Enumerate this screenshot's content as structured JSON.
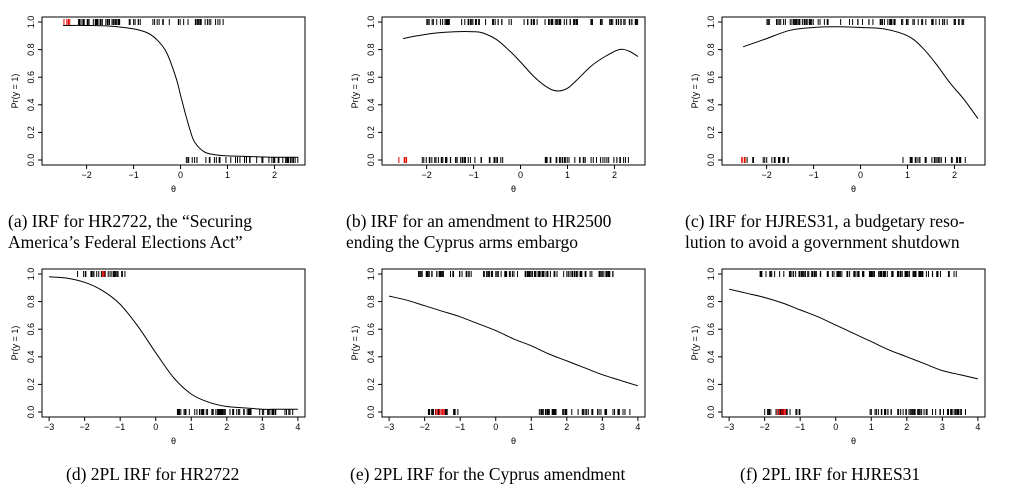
{
  "chart_data": [
    {
      "id": "a",
      "type": "line",
      "caption_lines": [
        "(a) IRF for HR2722, the “Securing",
        "America’s Federal Elections Act”"
      ],
      "xlabel": "θ",
      "ylabel": "Pr(y = 1)",
      "xlim": [
        -2.95,
        2.65
      ],
      "ylim": [
        0,
        1
      ],
      "xticks": [
        -2,
        -1,
        0,
        1,
        2
      ],
      "yticks": [
        0.0,
        0.2,
        0.4,
        0.6,
        0.8,
        1.0
      ],
      "ytick_labels": [
        "0.0",
        "0.2",
        "0.4",
        "0.6",
        "0.8",
        "1.0"
      ],
      "curve": {
        "x": [
          -2.5,
          -2.0,
          -1.5,
          -1.0,
          -0.7,
          -0.5,
          -0.3,
          -0.1,
          0.0,
          0.1,
          0.2,
          0.3,
          0.5,
          0.7,
          1.0,
          1.5,
          2.0,
          2.5
        ],
        "y": [
          0.975,
          0.975,
          0.97,
          0.95,
          0.92,
          0.87,
          0.78,
          0.6,
          0.47,
          0.34,
          0.22,
          0.13,
          0.06,
          0.04,
          0.03,
          0.025,
          0.02,
          0.02
        ]
      },
      "rug_top_black": [
        [
          -2.2,
          1.05
        ]
      ],
      "rug_top_red": [
        [
          -2.5,
          -2.3
        ]
      ],
      "rug_bottom_black": [
        [
          0.1,
          0.4
        ],
        [
          0.5,
          2.5
        ]
      ],
      "rug_bottom_red": []
    },
    {
      "id": "b",
      "type": "line",
      "caption_lines": [
        "(b) IRF for an amendment to HR2500",
        "ending the Cyprus arms embargo"
      ],
      "xlabel": "θ",
      "ylabel": "Pr(y = 1)",
      "xlim": [
        -2.95,
        2.65
      ],
      "ylim": [
        0,
        1
      ],
      "xticks": [
        -2,
        -1,
        0,
        1,
        2
      ],
      "yticks": [
        0.0,
        0.2,
        0.4,
        0.6,
        0.8,
        1.0
      ],
      "ytick_labels": [
        "0.0",
        "0.2",
        "0.4",
        "0.6",
        "0.8",
        "1.0"
      ],
      "curve": {
        "x": [
          -2.5,
          -2.2,
          -1.8,
          -1.4,
          -1.0,
          -0.8,
          -0.5,
          -0.2,
          0.0,
          0.3,
          0.6,
          0.8,
          1.0,
          1.2,
          1.5,
          1.8,
          2.1,
          2.3,
          2.5
        ],
        "y": [
          0.88,
          0.9,
          0.92,
          0.93,
          0.93,
          0.92,
          0.87,
          0.78,
          0.71,
          0.6,
          0.52,
          0.5,
          0.52,
          0.58,
          0.68,
          0.75,
          0.8,
          0.79,
          0.75
        ]
      },
      "rug_top_black": [
        [
          -2.0,
          2.5
        ]
      ],
      "rug_top_red": [],
      "rug_bottom_black": [
        [
          -2.1,
          -0.3
        ],
        [
          0.5,
          2.4
        ]
      ],
      "rug_bottom_red": [
        [
          -2.6,
          -2.4
        ]
      ]
    },
    {
      "id": "c",
      "type": "line",
      "caption_lines": [
        "(c) IRF for HJRES31, a budgetary reso-",
        "lution to avoid a government shutdown"
      ],
      "xlabel": "θ",
      "ylabel": "Pr(y = 1)",
      "xlim": [
        -2.95,
        2.65
      ],
      "ylim": [
        0,
        1
      ],
      "xticks": [
        -2,
        -1,
        0,
        1,
        2
      ],
      "yticks": [
        0.0,
        0.2,
        0.4,
        0.6,
        0.8,
        1.0
      ],
      "ytick_labels": [
        "0.0",
        "0.2",
        "0.4",
        "0.6",
        "0.8",
        "1.0"
      ],
      "curve": {
        "x": [
          -2.5,
          -2.0,
          -1.5,
          -1.0,
          -0.5,
          0.0,
          0.5,
          1.0,
          1.3,
          1.6,
          1.9,
          2.2,
          2.5
        ],
        "y": [
          0.82,
          0.88,
          0.94,
          0.96,
          0.965,
          0.96,
          0.95,
          0.9,
          0.82,
          0.7,
          0.56,
          0.44,
          0.3
        ]
      },
      "rug_top_black": [
        [
          -2.0,
          2.2
        ]
      ],
      "rug_top_red": [],
      "rug_bottom_black": [
        [
          -2.5,
          -1.5
        ],
        [
          0.8,
          2.3
        ]
      ],
      "rug_bottom_red": [
        [
          -2.6,
          -2.4
        ]
      ]
    },
    {
      "id": "d",
      "type": "line",
      "caption_lines": [
        "(d) 2PL IRF for HR2722"
      ],
      "xlabel": "θ",
      "ylabel": "Pr(y = 1)",
      "xlim": [
        -3.2,
        4.2
      ],
      "ylim": [
        0,
        1
      ],
      "xticks": [
        -3,
        -2,
        -1,
        0,
        1,
        2,
        3,
        4
      ],
      "yticks": [
        0.0,
        0.2,
        0.4,
        0.6,
        0.8,
        1.0
      ],
      "ytick_labels": [
        "0.0",
        "0.2",
        "0.4",
        "0.6",
        "0.8",
        "1.0"
      ],
      "curve": {
        "x": [
          -3.0,
          -2.5,
          -2.0,
          -1.5,
          -1.0,
          -0.5,
          0.0,
          0.5,
          1.0,
          1.5,
          2.0,
          2.5,
          3.0,
          3.5,
          4.0
        ],
        "y": [
          0.98,
          0.97,
          0.94,
          0.88,
          0.78,
          0.62,
          0.43,
          0.25,
          0.13,
          0.07,
          0.04,
          0.03,
          0.02,
          0.02,
          0.02
        ]
      },
      "rug_top_black": [
        [
          -2.2,
          -0.8
        ]
      ],
      "rug_top_red": [
        [
          -1.5,
          -1.4
        ]
      ],
      "rug_bottom_black": [
        [
          0.6,
          3.9
        ]
      ],
      "rug_bottom_red": []
    },
    {
      "id": "e",
      "type": "line",
      "caption_lines": [
        "(e) 2PL IRF for the Cyprus amendment"
      ],
      "xlabel": "θ",
      "ylabel": "Pr(y = 1)",
      "xlim": [
        -3.2,
        4.2
      ],
      "ylim": [
        0,
        1
      ],
      "xticks": [
        -3,
        -2,
        -1,
        0,
        1,
        2,
        3,
        4
      ],
      "yticks": [
        0.0,
        0.2,
        0.4,
        0.6,
        0.8,
        1.0
      ],
      "ytick_labels": [
        "0.0",
        "0.2",
        "0.4",
        "0.6",
        "0.8",
        "1.0"
      ],
      "curve": {
        "x": [
          -3.0,
          -2.5,
          -2.0,
          -1.5,
          -1.0,
          -0.5,
          0.0,
          0.5,
          1.0,
          1.5,
          2.0,
          2.5,
          3.0,
          3.5,
          4.0
        ],
        "y": [
          0.84,
          0.81,
          0.77,
          0.73,
          0.69,
          0.64,
          0.59,
          0.53,
          0.48,
          0.42,
          0.37,
          0.32,
          0.27,
          0.23,
          0.19
        ]
      },
      "rug_top_black": [
        [
          -2.2,
          3.4
        ]
      ],
      "rug_top_red": [],
      "rug_bottom_black": [
        [
          -2.0,
          -1.0
        ],
        [
          1.2,
          3.8
        ]
      ],
      "rug_bottom_red": [
        [
          -1.7,
          -1.4
        ]
      ]
    },
    {
      "id": "f",
      "type": "line",
      "caption_lines": [
        "(f) 2PL IRF for HJRES31"
      ],
      "xlabel": "θ",
      "ylabel": "Pr(y = 1)",
      "xlim": [
        -3.2,
        4.2
      ],
      "ylim": [
        0,
        1
      ],
      "xticks": [
        -3,
        -2,
        -1,
        0,
        1,
        2,
        3,
        4
      ],
      "yticks": [
        0.0,
        0.2,
        0.4,
        0.6,
        0.8,
        1.0
      ],
      "ytick_labels": [
        "0.0",
        "0.2",
        "0.4",
        "0.6",
        "0.8",
        "1.0"
      ],
      "curve": {
        "x": [
          -3.0,
          -2.5,
          -2.0,
          -1.5,
          -1.0,
          -0.5,
          0.0,
          0.5,
          1.0,
          1.5,
          2.0,
          2.5,
          3.0,
          3.5,
          4.0
        ],
        "y": [
          0.89,
          0.86,
          0.83,
          0.79,
          0.74,
          0.69,
          0.63,
          0.57,
          0.51,
          0.45,
          0.4,
          0.35,
          0.3,
          0.27,
          0.24
        ]
      },
      "rug_top_black": [
        [
          -2.2,
          3.4
        ]
      ],
      "rug_top_red": [],
      "rug_bottom_black": [
        [
          -2.0,
          -1.0
        ],
        [
          0.9,
          3.7
        ]
      ],
      "rug_bottom_red": [
        [
          -1.7,
          -1.4
        ]
      ]
    }
  ]
}
